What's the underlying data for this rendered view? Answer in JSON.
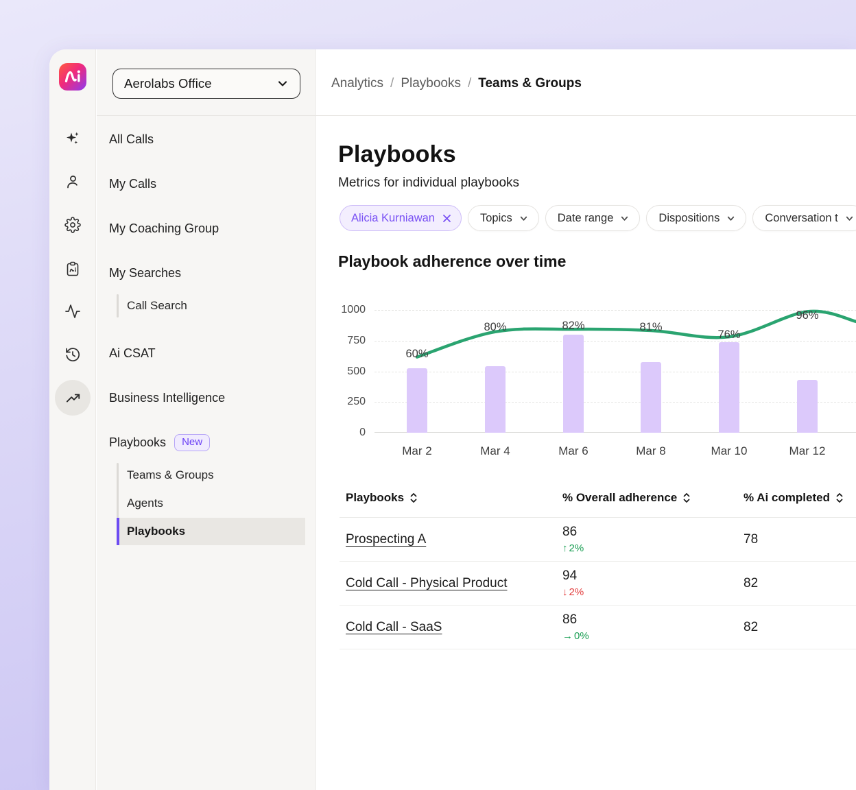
{
  "workspace": {
    "name": "Aerolabs Office"
  },
  "breadcrumb": {
    "items": [
      "Analytics",
      "Playbooks"
    ],
    "separator": "/",
    "current": "Teams & Groups"
  },
  "rail": {
    "icons": [
      "sparkles-ai",
      "user",
      "settings-gear",
      "playbook-clipboard",
      "activity-pulse",
      "history-clock",
      "trending-up"
    ],
    "active_icon": "trending-up"
  },
  "sidebar": {
    "items": [
      {
        "label": "All Calls"
      },
      {
        "label": "My Calls"
      },
      {
        "label": "My Coaching Group"
      },
      {
        "label": "My Searches",
        "children": [
          "Call Search"
        ]
      },
      {
        "label": "Ai CSAT"
      },
      {
        "label": "Business Intelligence"
      },
      {
        "label": "Playbooks",
        "badge": "New",
        "children": [
          "Teams & Groups",
          "Agents",
          "Playbooks"
        ],
        "active_child": "Playbooks"
      }
    ]
  },
  "page": {
    "title": "Playbooks",
    "subtitle": "Metrics for individual playbooks"
  },
  "filters": {
    "active_chip": {
      "label": "Alicia Kurniawan"
    },
    "dropdowns": [
      "Topics",
      "Date range",
      "Dispositions",
      "Conversation t"
    ]
  },
  "chart_data": {
    "type": "bar",
    "title": "Playbook adherence over time",
    "categories": [
      "Mar 2",
      "Mar 4",
      "Mar 6",
      "Mar 8",
      "Mar 10",
      "Mar 12"
    ],
    "series": [
      {
        "name": "call volume",
        "type": "bar",
        "values": [
          525,
          540,
          800,
          575,
          740,
          430
        ],
        "color": "#dcc9fb"
      },
      {
        "name": "adherence",
        "type": "line",
        "values": [
          60,
          80,
          82,
          81,
          76,
          96
        ],
        "labels": [
          "60%",
          "80%",
          "82%",
          "81%",
          "76%",
          "96%"
        ],
        "color": "#2aa470",
        "axis_max": 100,
        "overflow_end_value": 88
      }
    ],
    "ylabel": "",
    "xlabel": "",
    "ylim": [
      0,
      1000
    ],
    "yticks": [
      0,
      250,
      500,
      750,
      1000
    ],
    "grid": "dashed-horizontal",
    "legend": "none"
  },
  "table": {
    "columns": [
      {
        "label": "Playbooks",
        "sortable": true
      },
      {
        "label": "% Overall adherence",
        "sortable": true
      },
      {
        "label": "% Ai completed",
        "sortable": true
      }
    ],
    "rows": [
      {
        "playbook": "Prospecting A",
        "overall_adherence": "86",
        "trend_arrow": "↑",
        "trend_value": "2%",
        "trend_direction": "up",
        "ai_completed": "78"
      },
      {
        "playbook": "Cold Call - Physical Product",
        "overall_adherence": "94",
        "trend_arrow": "↓",
        "trend_value": "2%",
        "trend_direction": "down",
        "ai_completed": "82"
      },
      {
        "playbook": "Cold Call - SaaS",
        "overall_adherence": "86",
        "trend_arrow": "→",
        "trend_value": "0%",
        "trend_direction": "flat",
        "ai_completed": "82"
      }
    ]
  },
  "colors": {
    "accent_purple": "#7a52f4",
    "active_bar_purple": "#6d4cf2",
    "badge_purple": "#6a3ff5",
    "bar_lavender": "#dcc9fb",
    "line_green": "#2aa470",
    "trend_up_green": "#1a9e53",
    "trend_down_red": "#e23c3c",
    "background_lavender": "#c7c0f2",
    "logo_gradient": [
      "#ff5b3d",
      "#f02a7c",
      "#8d3bf0"
    ]
  }
}
